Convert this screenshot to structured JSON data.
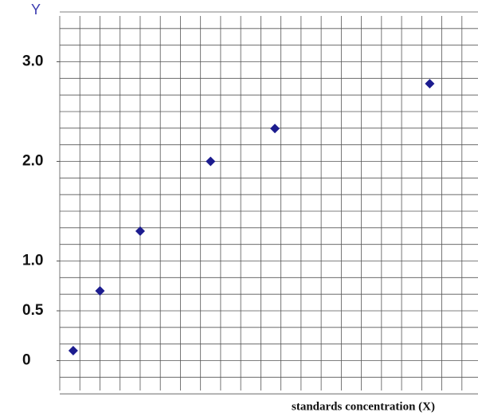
{
  "chart_data": {
    "type": "scatter",
    "ylabel": "Y",
    "xlabel": "standards concentration (X)",
    "x": [
      0.67,
      2,
      4,
      7.5,
      10.7,
      18.4
    ],
    "series": [
      {
        "color": "#1c1c8f",
        "values": [
          0.1,
          0.7,
          1.3,
          2.0,
          2.33,
          2.78
        ]
      }
    ],
    "xlim": [
      0,
      20.8
    ],
    "ylim": [
      -0.3,
      3.5
    ],
    "yticks": [
      0,
      0.5,
      {
        "value": 1,
        "label": "1.0"
      },
      {
        "value": 2,
        "label": "2.0"
      },
      {
        "value": 3,
        "label": "3.0"
      }
    ],
    "grid": true
  }
}
